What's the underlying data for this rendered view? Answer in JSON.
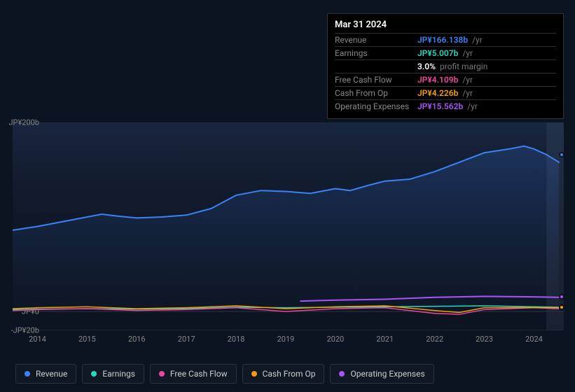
{
  "tooltip": {
    "date": "Mar 31 2024",
    "rows": [
      {
        "label": "Revenue",
        "value": "JP¥166.138b",
        "unit": "/yr",
        "color": "#3b82f6"
      },
      {
        "label": "Earnings",
        "value": "JP¥5.007b",
        "unit": "/yr",
        "color": "#2dd4bf"
      },
      {
        "label": "",
        "value": "3.0%",
        "unit": "profit margin",
        "color": "#ffffff"
      },
      {
        "label": "Free Cash Flow",
        "value": "JP¥4.109b",
        "unit": "/yr",
        "color": "#ec4899"
      },
      {
        "label": "Cash From Op",
        "value": "JP¥4.226b",
        "unit": "/yr",
        "color": "#f59e0b"
      },
      {
        "label": "Operating Expenses",
        "value": "JP¥15.562b",
        "unit": "/yr",
        "color": "#a855f7"
      }
    ]
  },
  "chart": {
    "type": "line",
    "background": "#0d1421",
    "plot_gradient_top": "rgba(40,60,100,0.25)",
    "plot_gradient_bottom": "rgba(13,20,33,0)",
    "grid_color": "#2a3340",
    "xlim": [
      2013.5,
      2024.6
    ],
    "ylim": [
      -20,
      200
    ],
    "y_ticks": [
      {
        "v": 200,
        "label": "JP¥200b"
      },
      {
        "v": 0,
        "label": "JP¥0"
      },
      {
        "v": -20,
        "label": "-JP¥20b"
      }
    ],
    "x_ticks": [
      2014,
      2015,
      2016,
      2017,
      2018,
      2019,
      2020,
      2021,
      2022,
      2023,
      2024
    ],
    "highlight_x": 2024.25,
    "series": {
      "revenue": {
        "color": "#3b82f6",
        "width": 2,
        "fill": "rgba(59,130,246,0.12)",
        "data": [
          [
            2013.5,
            86
          ],
          [
            2014,
            90
          ],
          [
            2014.5,
            95
          ],
          [
            2015,
            100
          ],
          [
            2015.3,
            103
          ],
          [
            2015.6,
            101
          ],
          [
            2016,
            99
          ],
          [
            2016.5,
            100
          ],
          [
            2017,
            102
          ],
          [
            2017.5,
            109
          ],
          [
            2018,
            123
          ],
          [
            2018.5,
            128
          ],
          [
            2019,
            127
          ],
          [
            2019.5,
            125
          ],
          [
            2020,
            130
          ],
          [
            2020.3,
            128
          ],
          [
            2020.7,
            134
          ],
          [
            2021,
            138
          ],
          [
            2021.5,
            140
          ],
          [
            2022,
            148
          ],
          [
            2022.5,
            158
          ],
          [
            2023,
            168
          ],
          [
            2023.5,
            172
          ],
          [
            2023.8,
            175
          ],
          [
            2024,
            172
          ],
          [
            2024.25,
            166
          ],
          [
            2024.5,
            158
          ]
        ]
      },
      "earnings": {
        "color": "#2dd4bf",
        "width": 1.5,
        "data": [
          [
            2013.5,
            2
          ],
          [
            2014,
            2.5
          ],
          [
            2015,
            3
          ],
          [
            2016,
            2.5
          ],
          [
            2017,
            3
          ],
          [
            2018,
            4.5
          ],
          [
            2019,
            4
          ],
          [
            2020,
            4.5
          ],
          [
            2021,
            5
          ],
          [
            2022,
            5.5
          ],
          [
            2023,
            6
          ],
          [
            2024,
            5
          ],
          [
            2024.5,
            4.5
          ]
        ]
      },
      "fcf": {
        "color": "#ec4899",
        "width": 1.5,
        "data": [
          [
            2013.5,
            1
          ],
          [
            2014,
            2
          ],
          [
            2015,
            3
          ],
          [
            2016,
            1
          ],
          [
            2017,
            2
          ],
          [
            2018,
            4
          ],
          [
            2019,
            0
          ],
          [
            2020,
            3
          ],
          [
            2021,
            4
          ],
          [
            2022,
            -2
          ],
          [
            2022.5,
            -3
          ],
          [
            2023,
            2
          ],
          [
            2024,
            4
          ],
          [
            2024.5,
            3
          ]
        ]
      },
      "cashop": {
        "color": "#f59e0b",
        "width": 1.5,
        "data": [
          [
            2013.5,
            3
          ],
          [
            2014,
            4
          ],
          [
            2015,
            5
          ],
          [
            2016,
            3
          ],
          [
            2017,
            4
          ],
          [
            2018,
            6
          ],
          [
            2019,
            3
          ],
          [
            2020,
            5
          ],
          [
            2021,
            6
          ],
          [
            2022,
            1
          ],
          [
            2022.5,
            -1
          ],
          [
            2023,
            4
          ],
          [
            2024,
            4.2
          ],
          [
            2024.5,
            4
          ]
        ]
      },
      "opex": {
        "color": "#a855f7",
        "width": 2,
        "data": [
          [
            2019.3,
            11
          ],
          [
            2020,
            12
          ],
          [
            2021,
            13
          ],
          [
            2022,
            15
          ],
          [
            2023,
            16
          ],
          [
            2024,
            15.5
          ],
          [
            2024.5,
            15
          ]
        ]
      }
    }
  },
  "legend": [
    {
      "label": "Revenue",
      "color": "#3b82f6"
    },
    {
      "label": "Earnings",
      "color": "#2dd4bf"
    },
    {
      "label": "Free Cash Flow",
      "color": "#ec4899"
    },
    {
      "label": "Cash From Op",
      "color": "#f59e0b"
    },
    {
      "label": "Operating Expenses",
      "color": "#a855f7"
    }
  ]
}
